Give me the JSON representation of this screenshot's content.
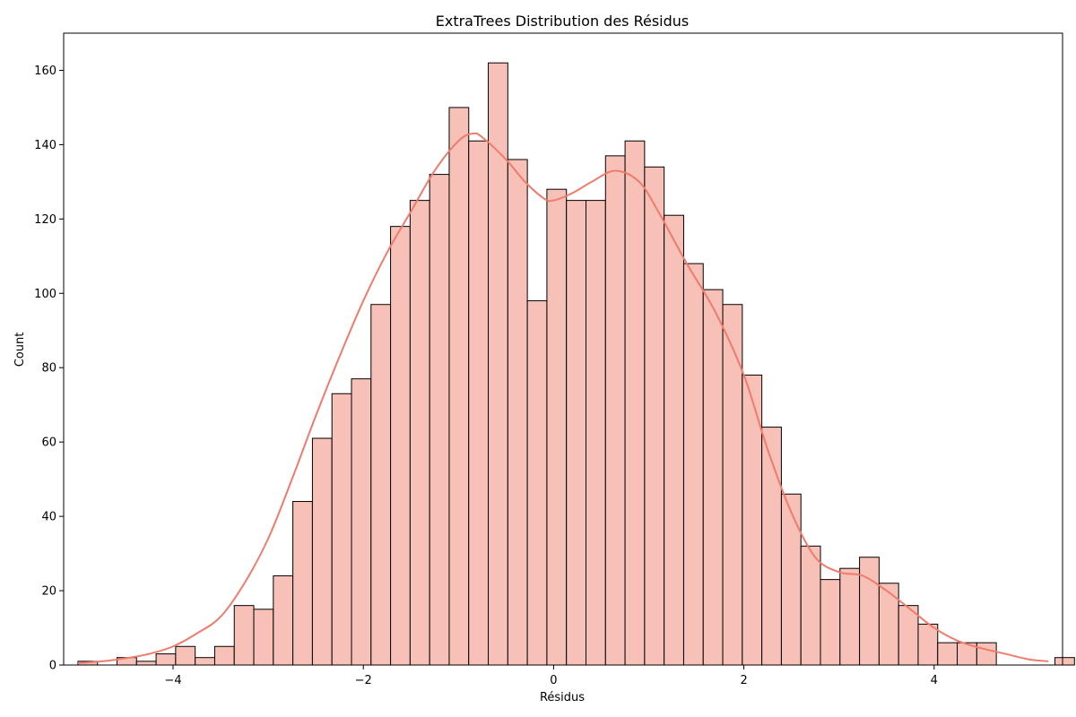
{
  "chart_data": {
    "type": "bar",
    "title": "ExtraTrees Distribution des Résidus",
    "xlabel": "Résidus",
    "ylabel": "Count",
    "xlim": [
      -5.15,
      5.35
    ],
    "ylim": [
      0,
      170
    ],
    "xticks": [
      -4,
      -2,
      0,
      2,
      4
    ],
    "xtick_labels": [
      "−4",
      "−2",
      "0",
      "2",
      "4"
    ],
    "yticks": [
      0,
      20,
      40,
      60,
      80,
      100,
      120,
      140,
      160
    ],
    "ytick_labels": [
      "0",
      "20",
      "40",
      "60",
      "80",
      "100",
      "120",
      "140",
      "160"
    ],
    "bin_start": -5.0,
    "bin_width": 0.2054,
    "values": [
      1,
      0,
      2,
      1,
      3,
      5,
      2,
      5,
      16,
      15,
      24,
      44,
      61,
      73,
      77,
      97,
      118,
      125,
      132,
      150,
      141,
      162,
      136,
      98,
      128,
      125,
      125,
      137,
      141,
      134,
      121,
      108,
      101,
      97,
      78,
      64,
      46,
      32,
      23,
      26,
      29,
      22,
      16,
      11,
      6,
      6,
      6,
      0,
      0,
      0,
      2
    ],
    "kde": {
      "x": [
        -5.0,
        -4.75,
        -4.5,
        -4.25,
        -4.0,
        -3.75,
        -3.5,
        -3.25,
        -3.0,
        -2.75,
        -2.5,
        -2.25,
        -2.0,
        -1.75,
        -1.5,
        -1.25,
        -1.0,
        -0.85,
        -0.75,
        -0.5,
        -0.3,
        -0.1,
        0.0,
        0.2,
        0.4,
        0.65,
        0.9,
        1.1,
        1.4,
        1.7,
        2.0,
        2.25,
        2.5,
        2.75,
        3.0,
        3.25,
        3.5,
        3.75,
        4.0,
        4.25,
        4.5,
        4.75,
        5.0,
        5.2
      ],
      "y": [
        0.5,
        1,
        1.8,
        3,
        5,
        8.5,
        13,
        22,
        34,
        50,
        67,
        83,
        98,
        111,
        122,
        133,
        141,
        143,
        142,
        136,
        130,
        125.5,
        125,
        127,
        130,
        133,
        130,
        122,
        108,
        95,
        78,
        58,
        41,
        29,
        25,
        24,
        20,
        15,
        10,
        6.5,
        4.5,
        3,
        1.5,
        1
      ]
    },
    "colors": {
      "bar_fill": "#f8c1b8",
      "bar_edge": "#000000",
      "kde_line": "#f07b6c"
    }
  }
}
